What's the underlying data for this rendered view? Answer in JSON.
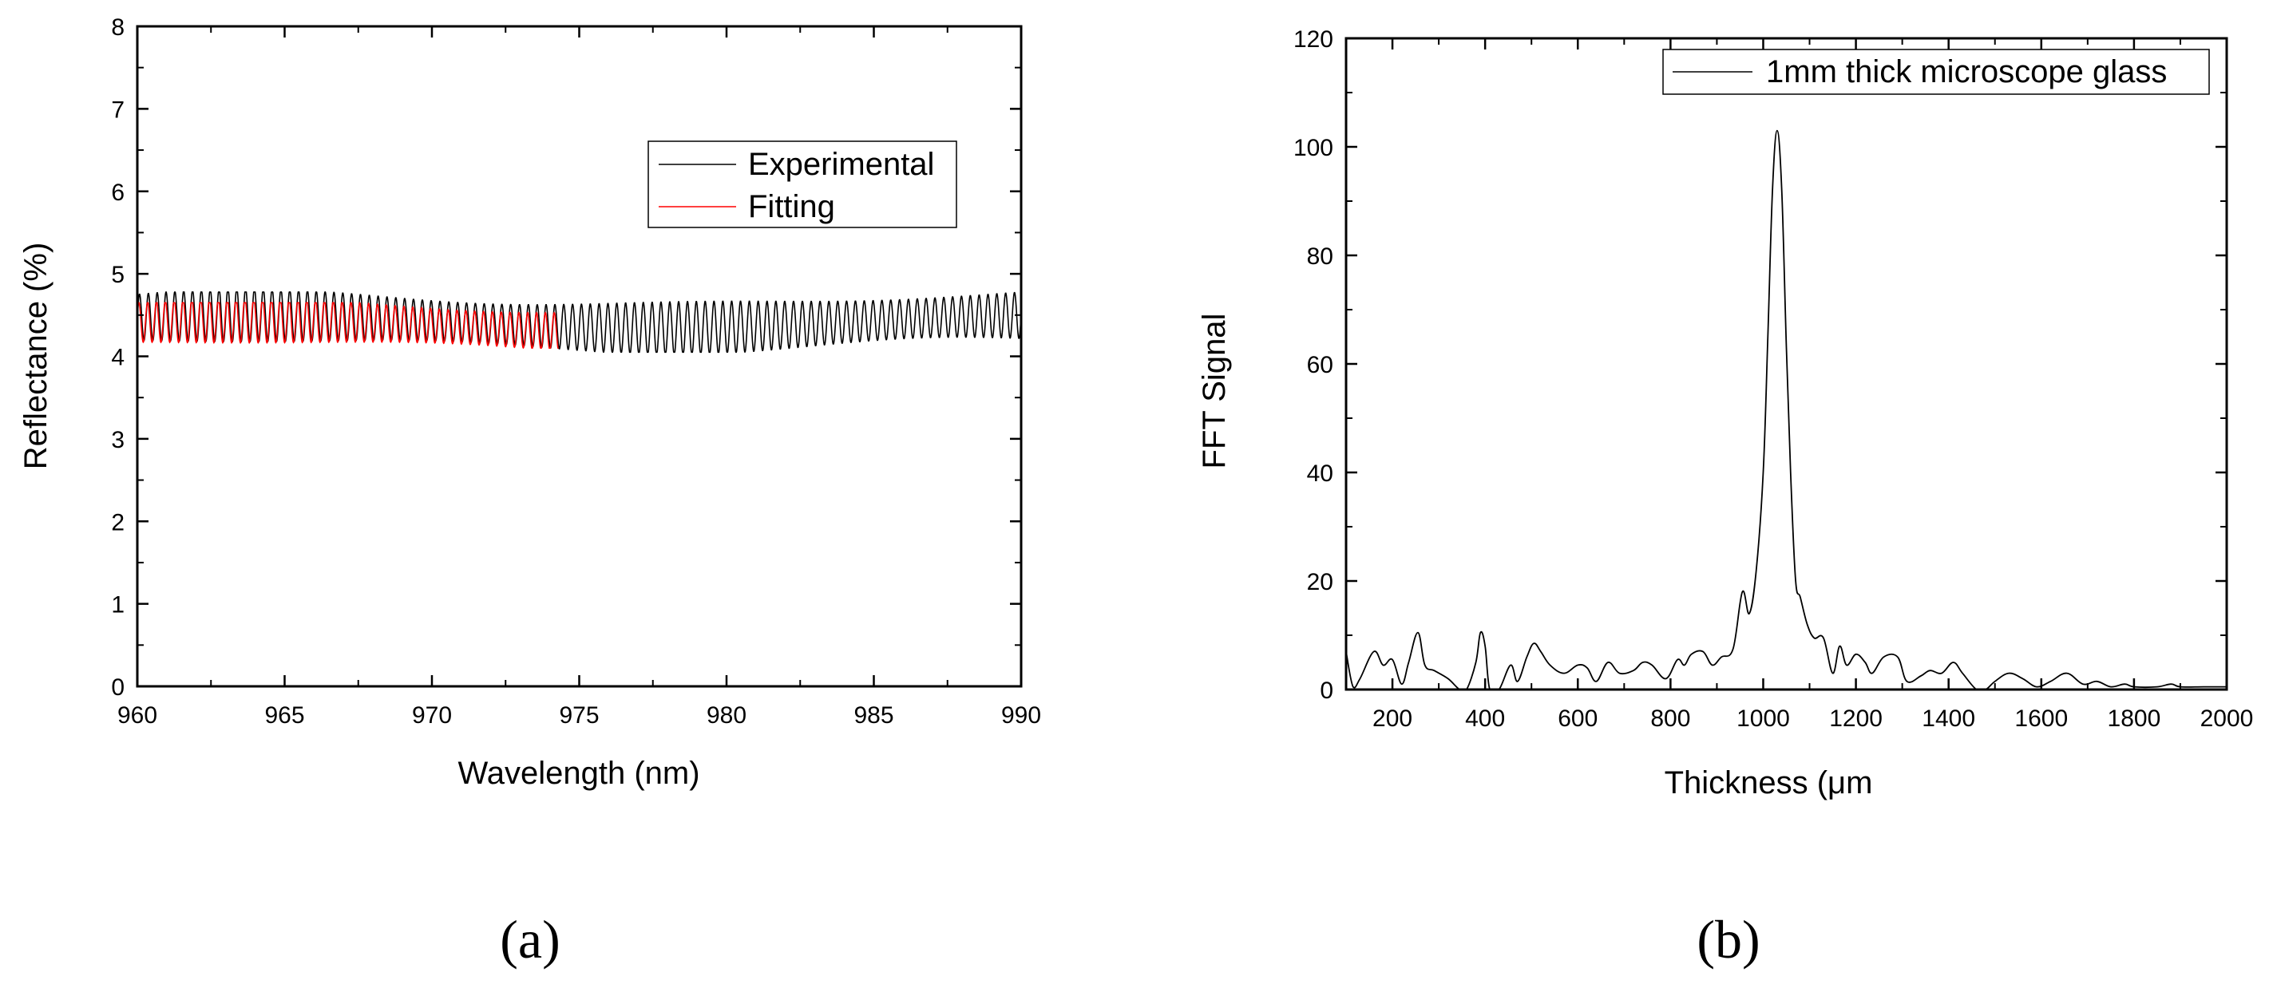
{
  "chart_data": [
    {
      "type": "line",
      "xlabel": "Wavelength (nm)",
      "ylabel": "Reflectance (%)",
      "xlim": [
        960,
        990
      ],
      "ylim": [
        0,
        8
      ],
      "xticks": [
        960,
        965,
        970,
        975,
        980,
        985,
        990
      ],
      "yticks": [
        0,
        1,
        2,
        3,
        4,
        5,
        6,
        7,
        8
      ],
      "grid": false,
      "legend_position": "upper-right",
      "series": [
        {
          "name": "Experimental",
          "color": "#000000",
          "x_range": [
            960,
            990
          ],
          "mean": 4.42,
          "amplitude": 0.28,
          "period_nm": 0.3,
          "y_min": 4.05,
          "y_max": 4.78
        },
        {
          "name": "Fitting",
          "color": "#ff0000",
          "x_range": [
            960,
            974.3
          ],
          "mean": 4.36,
          "amplitude": 0.24,
          "period_nm": 0.3,
          "y_min": 4.1,
          "y_max": 4.65
        }
      ]
    },
    {
      "type": "line",
      "xlabel": "Thickness (μm",
      "ylabel": "FFT Signal",
      "xlim": [
        100,
        2000
      ],
      "ylim": [
        0,
        120
      ],
      "xticks": [
        200,
        400,
        600,
        800,
        1000,
        1200,
        1400,
        1600,
        1800,
        2000
      ],
      "yticks": [
        0,
        20,
        40,
        60,
        80,
        100,
        120
      ],
      "grid": false,
      "legend_position": "top-right",
      "series": [
        {
          "name": "1mm thick microscope glass",
          "color": "#000000",
          "x": [
            100,
            115,
            130,
            160,
            180,
            200,
            220,
            235,
            255,
            270,
            290,
            320,
            345,
            360,
            380,
            390,
            400,
            410,
            430,
            455,
            470,
            490,
            505,
            520,
            540,
            570,
            600,
            620,
            640,
            665,
            690,
            720,
            740,
            760,
            790,
            815,
            830,
            845,
            870,
            890,
            910,
            935,
            955,
            970,
            985,
            1000,
            1010,
            1020,
            1030,
            1040,
            1050,
            1060,
            1070,
            1080,
            1095,
            1110,
            1130,
            1150,
            1165,
            1180,
            1200,
            1220,
            1235,
            1260,
            1290,
            1310,
            1340,
            1360,
            1385,
            1410,
            1430,
            1460,
            1480,
            1500,
            1530,
            1560,
            1590,
            1620,
            1655,
            1690,
            1720,
            1750,
            1780,
            1800,
            1850,
            1880,
            1900,
            1950,
            2000
          ],
          "y": [
            7,
            0.5,
            2,
            7,
            4.5,
            5.5,
            1,
            5,
            10.5,
            4.5,
            3.5,
            2,
            0,
            0,
            5,
            10.5,
            8,
            0,
            0,
            4.5,
            1.5,
            6,
            8.5,
            7,
            4.5,
            3,
            4.5,
            4,
            1.5,
            5,
            3,
            3.5,
            5,
            4.5,
            2,
            5.5,
            4.5,
            6.5,
            7,
            4.5,
            6,
            7.5,
            18,
            14,
            22,
            40,
            65,
            92,
            103,
            92,
            63,
            38,
            20,
            17,
            12,
            9.5,
            9.5,
            3,
            8,
            4.5,
            6.5,
            5,
            3,
            6,
            6,
            1.5,
            2.5,
            3.5,
            3,
            5,
            3,
            0,
            0,
            1.5,
            3,
            2,
            0.5,
            1.5,
            3,
            1,
            1.5,
            0.5,
            1,
            0.5,
            0.5,
            1,
            0.5,
            0.5,
            0.5
          ]
        }
      ]
    }
  ],
  "panels": {
    "a_label": "(a)",
    "b_label": "(b)"
  }
}
